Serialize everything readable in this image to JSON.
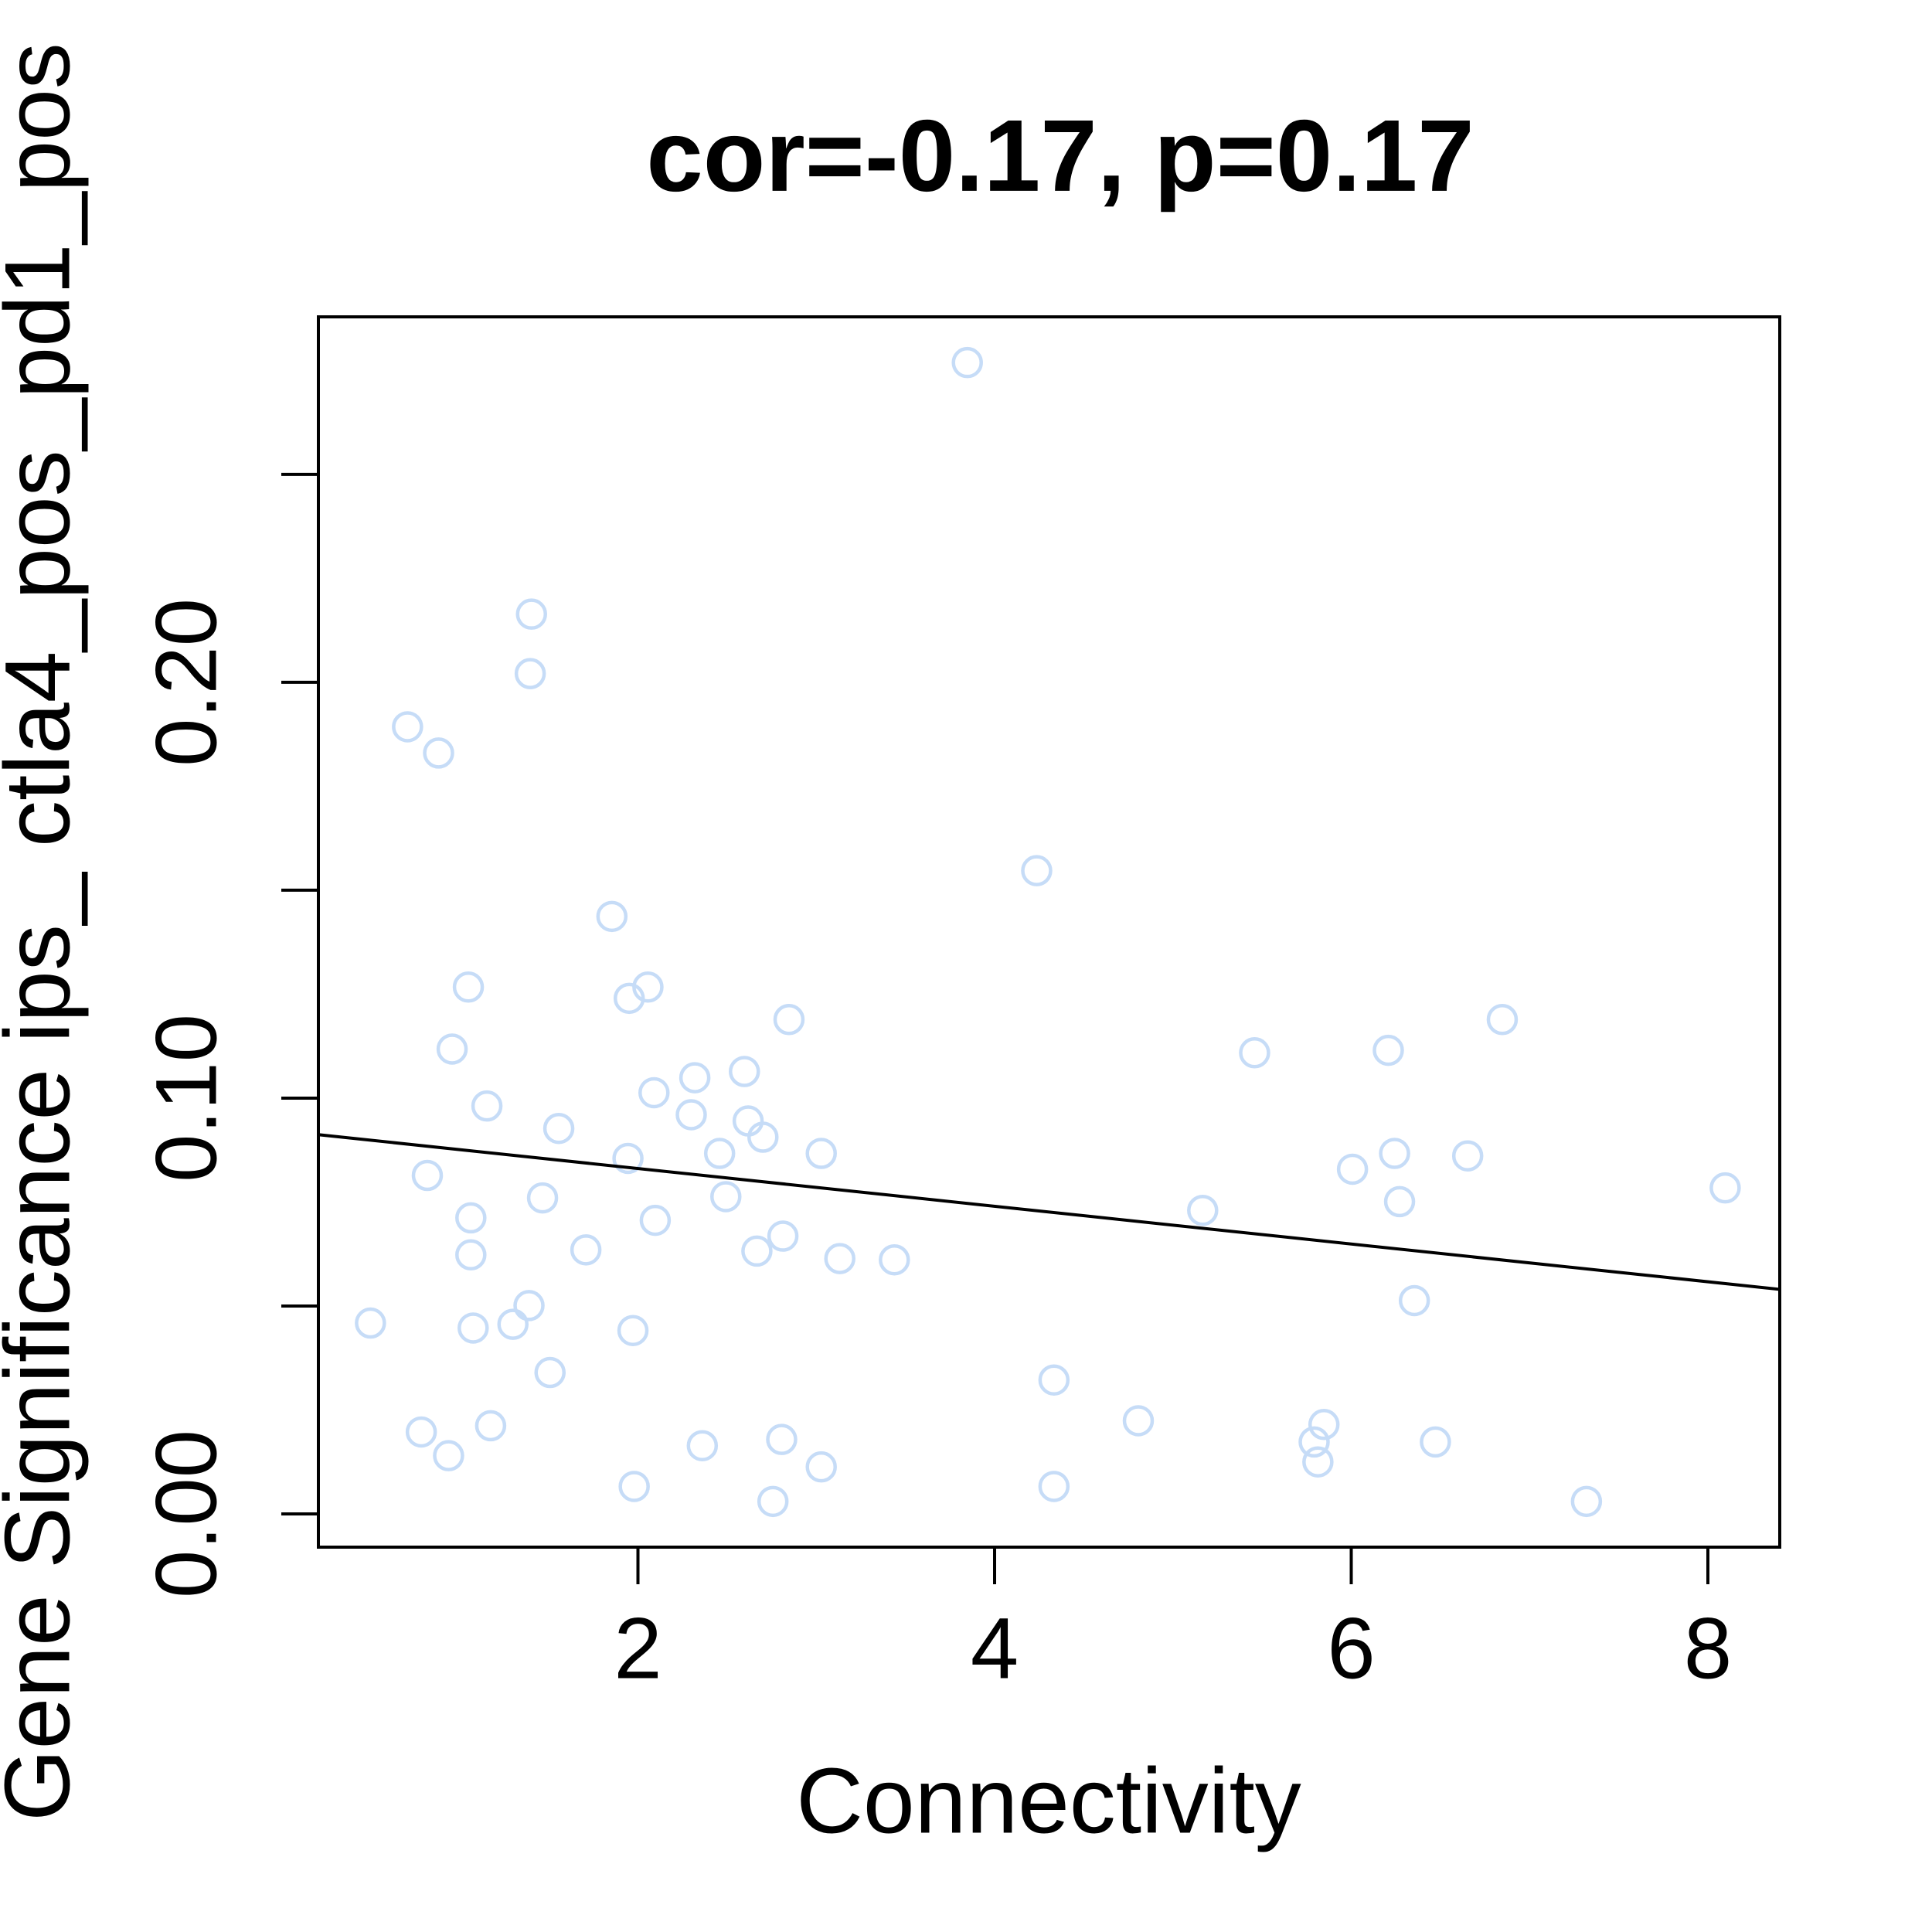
{
  "chart_data": {
    "type": "scatter",
    "title": "cor=-0.17, p=0.17",
    "x_label": "Connectivity",
    "y_label": "Gene Significance ips_ ctla4_pos_pd1_pos",
    "xlim": [
      0.208,
      8.403
    ],
    "ylim": [
      -0.008,
      0.2879
    ],
    "xticks": [
      2,
      4,
      6,
      8
    ],
    "yticks": [
      {
        "value": 0,
        "label": "0.00"
      },
      {
        "value": 0.1,
        "label": "0.10"
      },
      {
        "value": 0.2,
        "label": "0.20"
      }
    ],
    "yminor_ticks": [
      0.05,
      0.15,
      0.25
    ],
    "color": "#c6dcf7",
    "fit_line": {
      "x": [
        0.208,
        8.403
      ],
      "y": [
        0.0912,
        0.054
      ],
      "color": "#000000"
    },
    "x": [
      3.847,
      1.403,
      1.396,
      0.708,
      0.882,
      4.236,
      1.854,
      1.049,
      2.056,
      1.951,
      2.847,
      6.847,
      0.958,
      5.458,
      6.208,
      2.597,
      2.319,
      2.09,
      1.153,
      2.299,
      2.618,
      1.556,
      2.701,
      1.944,
      2.458,
      3.028,
      6.243,
      6.653,
      6.007,
      0.819,
      8.097,
      2.493,
      1.465,
      6.271,
      5.167,
      1.063,
      2.097,
      2.813,
      1.708,
      2.667,
      1.063,
      3.132,
      3.438,
      6.354,
      1.389,
      0.5,
      1.299,
      1.076,
      1.972,
      1.507,
      4.333,
      4.806,
      1.174,
      5.847,
      0.785,
      5.792,
      6.472,
      2.361,
      2.806,
      0.938,
      5.813,
      3.028,
      1.979,
      4.333,
      2.757,
      7.319
    ],
    "y": [
      0.2769,
      0.2164,
      0.2021,
      0.1893,
      0.183,
      0.1547,
      0.1437,
      0.1267,
      0.1267,
      0.124,
      0.1189,
      0.1189,
      0.1118,
      0.1109,
      0.1115,
      0.1064,
      0.1049,
      0.1013,
      0.0981,
      0.096,
      0.0945,
      0.0927,
      0.0906,
      0.0855,
      0.0867,
      0.0867,
      0.0867,
      0.0861,
      0.0829,
      0.0814,
      0.0784,
      0.0763,
      0.076,
      0.0751,
      0.073,
      0.0712,
      0.0706,
      0.0668,
      0.0635,
      0.0632,
      0.0623,
      0.0614,
      0.0611,
      0.0513,
      0.0501,
      0.0459,
      0.0456,
      0.0447,
      0.0441,
      0.034,
      0.0322,
      0.0224,
      0.0212,
      0.0215,
      0.0197,
      0.0173,
      0.0173,
      0.0164,
      0.0179,
      0.014,
      0.0125,
      0.0113,
      0.0066,
      0.0066,
      0.003,
      0.003
    ]
  }
}
